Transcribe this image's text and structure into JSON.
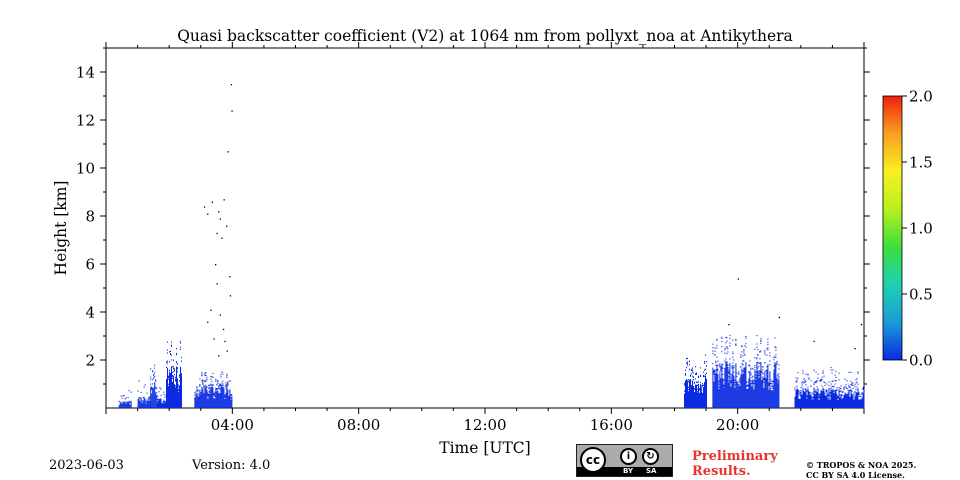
{
  "chart_data": {
    "type": "heatmap",
    "title": "Quasi backscatter coefficient (V2) at 1064 nm from pollyxt_noa at Antikythera",
    "xlabel": "Time [UTC]",
    "ylabel": "Height [km]",
    "xlim_hours": [
      0,
      24
    ],
    "ylim_km": [
      0,
      15
    ],
    "x_ticks": [
      {
        "hour": 4,
        "label": "04:00"
      },
      {
        "hour": 8,
        "label": "08:00"
      },
      {
        "hour": 12,
        "label": "12:00"
      },
      {
        "hour": 16,
        "label": "16:00"
      },
      {
        "hour": 20,
        "label": "20:00"
      }
    ],
    "y_ticks": [
      {
        "value": 2,
        "label": "2"
      },
      {
        "value": 4,
        "label": "4"
      },
      {
        "value": 6,
        "label": "6"
      },
      {
        "value": 8,
        "label": "8"
      },
      {
        "value": 10,
        "label": "10"
      },
      {
        "value": 12,
        "label": "12"
      },
      {
        "value": 14,
        "label": "14"
      }
    ],
    "colorbar": {
      "min": 0.0,
      "max": 2.0,
      "ticks": [
        {
          "value": 0.0,
          "label": "0.0"
        },
        {
          "value": 0.5,
          "label": "0.5"
        },
        {
          "value": 1.0,
          "label": "1.0"
        },
        {
          "value": 1.5,
          "label": "1.5"
        },
        {
          "value": 2.0,
          "label": "2.0"
        }
      ],
      "colormap": [
        "#0a2be0",
        "#1a9cd8",
        "#1fd0b0",
        "#3ce03a",
        "#b8f020",
        "#f8f020",
        "#f8a020",
        "#f02010"
      ]
    },
    "signal_regions": [
      {
        "start_hour": 0.4,
        "end_hour": 0.8,
        "max_height_km": 0.9,
        "density": 0.15
      },
      {
        "start_hour": 1.0,
        "end_hour": 1.4,
        "max_height_km": 1.3,
        "density": 0.2
      },
      {
        "start_hour": 1.4,
        "end_hour": 1.6,
        "max_height_km": 2.2,
        "density": 0.6
      },
      {
        "start_hour": 1.6,
        "end_hour": 1.9,
        "max_height_km": 1.0,
        "density": 0.35
      },
      {
        "start_hour": 1.9,
        "end_hour": 2.4,
        "max_height_km": 3.0,
        "density": 0.85
      },
      {
        "start_hour": 2.8,
        "end_hour": 4.0,
        "max_height_km": 1.6,
        "density": 0.8
      },
      {
        "start_hour": 18.3,
        "end_hour": 19.0,
        "max_height_km": 2.4,
        "density": 0.7
      },
      {
        "start_hour": 19.2,
        "end_hour": 21.3,
        "max_height_km": 3.2,
        "density": 0.9
      },
      {
        "start_hour": 21.8,
        "end_hour": 24.0,
        "max_height_km": 1.8,
        "density": 0.55
      }
    ],
    "sparse_points": [
      {
        "hour": 3.1,
        "height_km": 8.4
      },
      {
        "hour": 3.2,
        "height_km": 8.1
      },
      {
        "hour": 3.35,
        "height_km": 8.6
      },
      {
        "hour": 3.5,
        "height_km": 7.3
      },
      {
        "hour": 3.55,
        "height_km": 8.2
      },
      {
        "hour": 3.6,
        "height_km": 7.9
      },
      {
        "hour": 3.65,
        "height_km": 7.1
      },
      {
        "hour": 3.72,
        "height_km": 8.7
      },
      {
        "hour": 3.8,
        "height_km": 7.6
      },
      {
        "hour": 3.85,
        "height_km": 10.7
      },
      {
        "hour": 3.95,
        "height_km": 13.5
      },
      {
        "hour": 3.97,
        "height_km": 12.4
      },
      {
        "hour": 3.9,
        "height_km": 5.5
      },
      {
        "hour": 3.5,
        "height_km": 5.2
      },
      {
        "hour": 3.45,
        "height_km": 6.0
      },
      {
        "hour": 3.92,
        "height_km": 4.7
      },
      {
        "hour": 3.3,
        "height_km": 4.1
      },
      {
        "hour": 3.6,
        "height_km": 3.9
      },
      {
        "hour": 3.7,
        "height_km": 3.3
      },
      {
        "hour": 3.2,
        "height_km": 3.6
      },
      {
        "hour": 3.75,
        "height_km": 2.8
      },
      {
        "hour": 3.82,
        "height_km": 2.4
      },
      {
        "hour": 3.55,
        "height_km": 2.2
      },
      {
        "hour": 3.4,
        "height_km": 2.9
      },
      {
        "hour": 20.0,
        "height_km": 5.4
      },
      {
        "hour": 21.3,
        "height_km": 3.8
      },
      {
        "hour": 19.7,
        "height_km": 3.5
      },
      {
        "hour": 23.9,
        "height_km": 3.5
      },
      {
        "hour": 23.7,
        "height_km": 2.5
      },
      {
        "hour": 22.4,
        "height_km": 2.8
      }
    ]
  },
  "footer": {
    "date": "2023-06-03",
    "version": "Version: 4.0",
    "license_badge": {
      "cc": "cc",
      "by": "BY",
      "sa": "SA"
    },
    "preliminary_line1": "Preliminary",
    "preliminary_line2": "Results.",
    "copyright_line1": "© TROPOS & NOA 2025.",
    "copyright_line2": "CC BY SA 4.0 License."
  }
}
